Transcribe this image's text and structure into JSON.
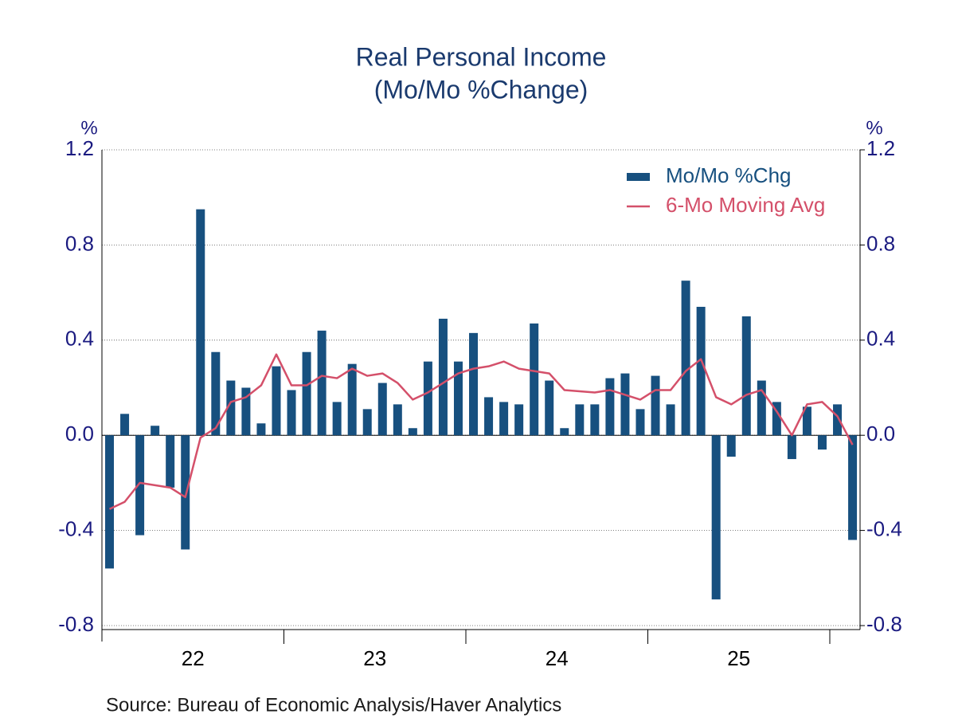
{
  "chart_data": {
    "type": "bar",
    "title": "Real Personal Income",
    "subtitle": "(Mo/Mo %Change)",
    "y_label": "%",
    "y2_label": "%",
    "source": "Source:  Bureau of Economic Analysis/Haver Analytics",
    "categories": [
      null,
      null,
      null,
      null,
      null,
      null,
      "22",
      null,
      null,
      null,
      null,
      null,
      null,
      null,
      null,
      null,
      null,
      null,
      "23",
      null,
      null,
      null,
      null,
      null,
      null,
      null,
      null,
      null,
      null,
      null,
      "24",
      null,
      null,
      null,
      null,
      null,
      null,
      null,
      null,
      null,
      null,
      null,
      "25",
      null,
      null,
      null,
      null,
      null,
      null,
      null
    ],
    "series": [
      {
        "name": "Mo/Mo %Chg",
        "type": "bar",
        "color": "#17507f",
        "values": [
          -0.56,
          0.09,
          -0.42,
          0.04,
          -0.22,
          -0.48,
          0.95,
          0.35,
          0.23,
          0.2,
          0.05,
          0.29,
          0.19,
          0.35,
          0.44,
          0.14,
          0.3,
          0.11,
          0.22,
          0.13,
          0.03,
          0.31,
          0.49,
          0.31,
          0.43,
          0.16,
          0.14,
          0.13,
          0.47,
          0.23,
          0.03,
          0.13,
          0.13,
          0.24,
          0.26,
          0.11,
          0.25,
          0.13,
          0.65,
          0.54,
          -0.69,
          -0.09,
          0.5,
          0.23,
          0.14,
          -0.1,
          0.12,
          -0.06,
          0.13,
          -0.44
        ]
      },
      {
        "name": "6-Mo Moving Avg",
        "type": "line",
        "color": "#d4506a",
        "values": [
          -0.31,
          -0.28,
          -0.2,
          -0.21,
          -0.22,
          -0.26,
          -0.01,
          0.03,
          0.14,
          0.16,
          0.21,
          0.34,
          0.21,
          0.21,
          0.25,
          0.24,
          0.28,
          0.25,
          0.26,
          0.22,
          0.15,
          0.18,
          0.22,
          0.26,
          0.28,
          0.29,
          0.31,
          0.28,
          0.27,
          0.26,
          0.19,
          0.185,
          0.18,
          0.19,
          0.17,
          0.15,
          0.19,
          0.19,
          0.27,
          0.32,
          0.16,
          0.13,
          0.17,
          0.19,
          0.1,
          0.0,
          0.13,
          0.14,
          0.08,
          -0.04
        ]
      }
    ],
    "ylim": [
      -0.8,
      1.2
    ],
    "yticks": [
      -0.8,
      -0.4,
      {
        "value": 0,
        "label": "0.0"
      },
      0.4,
      0.8,
      1.2
    ],
    "y2lim": [
      -0.8,
      1.2
    ],
    "y2ticks": [
      -0.8,
      -0.4,
      {
        "value": 0,
        "label": "0.0"
      },
      0.4,
      0.8,
      1.2
    ],
    "grid": true,
    "legend": "top-right"
  }
}
